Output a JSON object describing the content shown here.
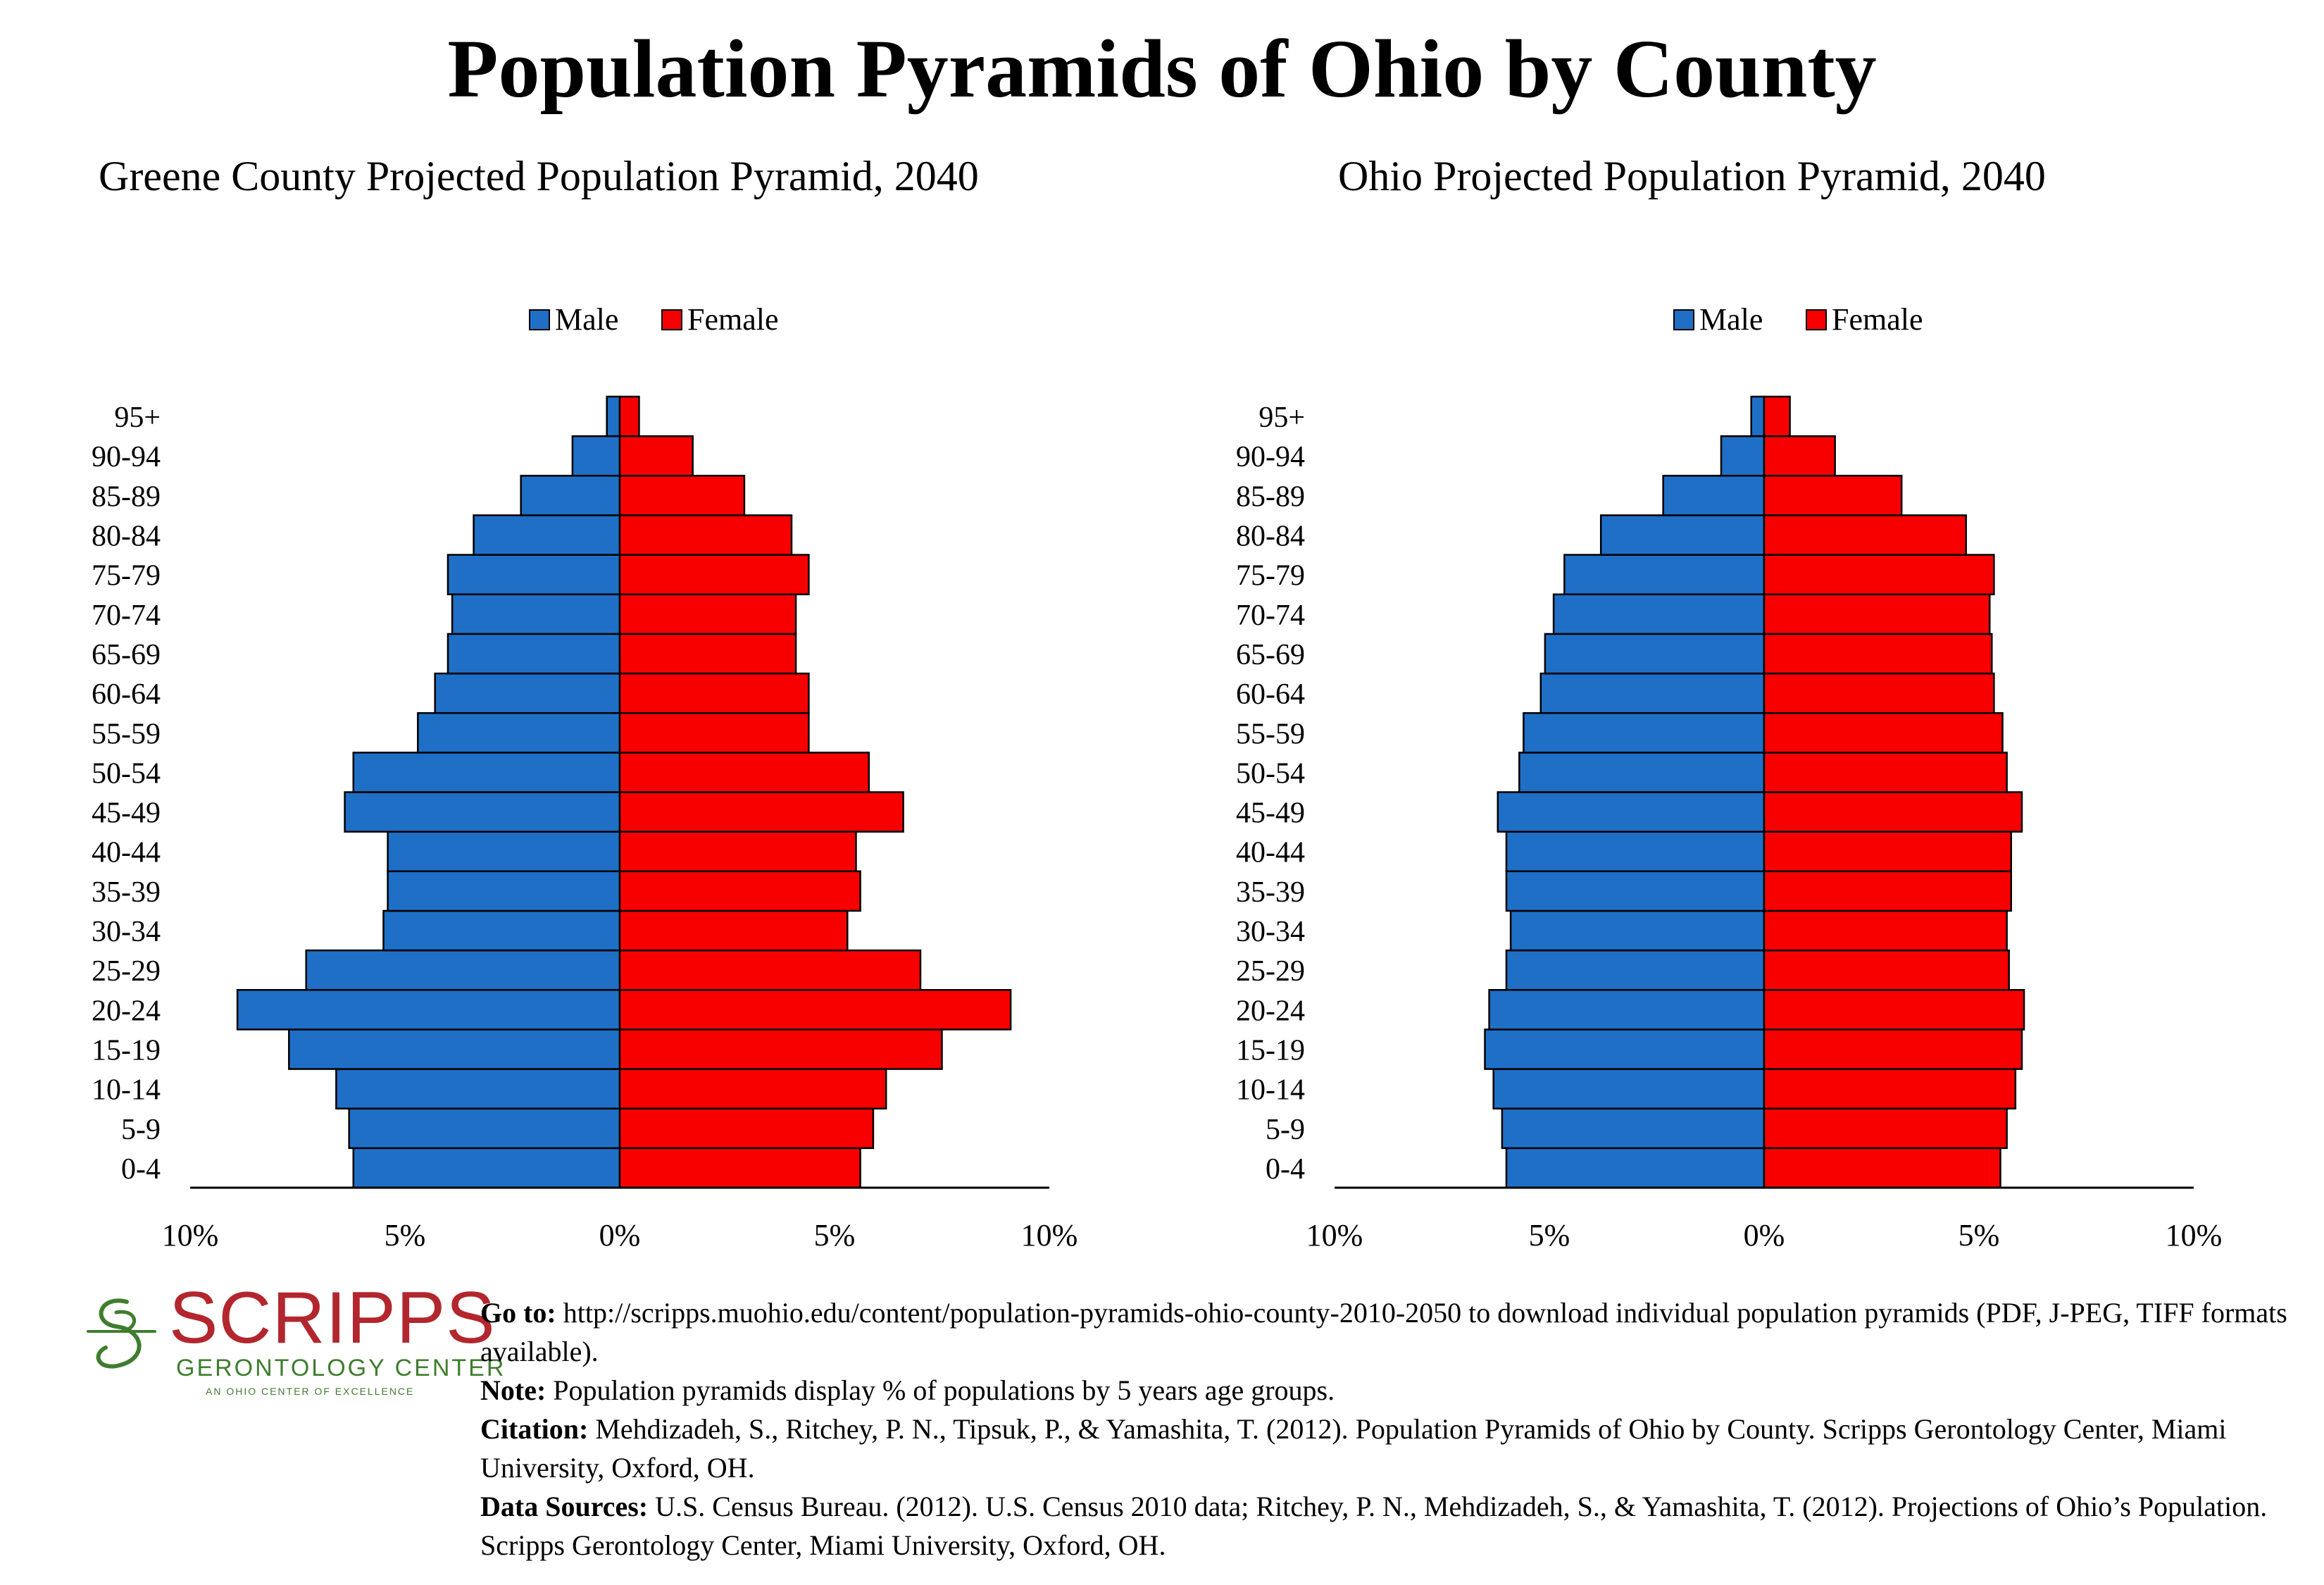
{
  "title": "Population Pyramids of Ohio by County",
  "legend": {
    "male": "Male",
    "female": "Female"
  },
  "colors": {
    "male": "#1f6fc6",
    "female": "#f80000",
    "logo_red": "#b3262d",
    "logo_green": "#3f7d2e"
  },
  "chart_data": [
    {
      "type": "bar",
      "subtype": "population-pyramid",
      "title": "Greene County Projected Population Pyramid, 2040",
      "categories": [
        "0-4",
        "5-9",
        "10-14",
        "15-19",
        "20-24",
        "25-29",
        "30-34",
        "35-39",
        "40-44",
        "45-49",
        "50-54",
        "55-59",
        "60-64",
        "65-69",
        "70-74",
        "75-79",
        "80-84",
        "85-89",
        "90-94",
        "95+"
      ],
      "series": [
        {
          "name": "Male",
          "values": [
            6.2,
            6.3,
            6.6,
            7.7,
            8.9,
            7.3,
            5.5,
            5.4,
            5.4,
            6.4,
            6.2,
            4.7,
            4.3,
            4.0,
            3.9,
            4.0,
            3.4,
            2.3,
            1.1,
            0.3
          ]
        },
        {
          "name": "Female",
          "values": [
            5.6,
            5.9,
            6.2,
            7.5,
            9.1,
            7.0,
            5.3,
            5.6,
            5.5,
            6.6,
            5.8,
            4.4,
            4.4,
            4.1,
            4.1,
            4.4,
            4.0,
            2.9,
            1.7,
            0.45
          ]
        }
      ],
      "xticks": [
        "10%",
        "5%",
        "0%",
        "5%",
        "10%"
      ],
      "xlim": [
        -10,
        10
      ],
      "legend_position": "top-center"
    },
    {
      "type": "bar",
      "subtype": "population-pyramid",
      "title": "Ohio Projected Population Pyramid, 2040",
      "categories": [
        "0-4",
        "5-9",
        "10-14",
        "15-19",
        "20-24",
        "25-29",
        "30-34",
        "35-39",
        "40-44",
        "45-49",
        "50-54",
        "55-59",
        "60-64",
        "65-69",
        "70-74",
        "75-79",
        "80-84",
        "85-89",
        "90-94",
        "95+"
      ],
      "series": [
        {
          "name": "Male",
          "values": [
            6.0,
            6.1,
            6.3,
            6.5,
            6.4,
            6.0,
            5.9,
            6.0,
            6.0,
            6.2,
            5.7,
            5.6,
            5.2,
            5.1,
            4.9,
            4.65,
            3.8,
            2.35,
            1.0,
            0.3
          ]
        },
        {
          "name": "Female",
          "values": [
            5.5,
            5.65,
            5.85,
            6.0,
            6.05,
            5.7,
            5.65,
            5.75,
            5.75,
            6.0,
            5.65,
            5.55,
            5.35,
            5.3,
            5.25,
            5.35,
            4.7,
            3.2,
            1.65,
            0.6
          ]
        }
      ],
      "xticks": [
        "10%",
        "5%",
        "0%",
        "5%",
        "10%"
      ],
      "xlim": [
        -10,
        10
      ],
      "legend_position": "top-center"
    }
  ],
  "footer": {
    "goto_label": "Go to:",
    "goto_text": " http://scripps.muohio.edu/content/population-pyramids-ohio-county-2010-2050 to download individual population pyramids (PDF, J-PEG, TIFF formats available).",
    "note_label": "Note:",
    "note_text": " Population pyramids display % of populations by 5 years age groups.",
    "citation_label": "Citation:",
    "citation_text": " Mehdizadeh, S., Ritchey, P. N., Tipsuk, P., & Yamashita, T. (2012). Population Pyramids of Ohio by County. Scripps Gerontology Center, Miami University, Oxford, OH.",
    "sources_label": "Data Sources:",
    "sources_text": " U.S. Census Bureau. (2012). U.S. Census 2010 data; Ritchey, P. N., Mehdizadeh, S., & Yamashita, T. (2012). Projections of Ohio’s Population. Scripps Gerontology Center, Miami University, Oxford, OH."
  },
  "logo": {
    "word": "SCRIPPS",
    "subtitle": "GERONTOLOGY CENTER",
    "tagline": "AN OHIO CENTER OF EXCELLENCE"
  }
}
